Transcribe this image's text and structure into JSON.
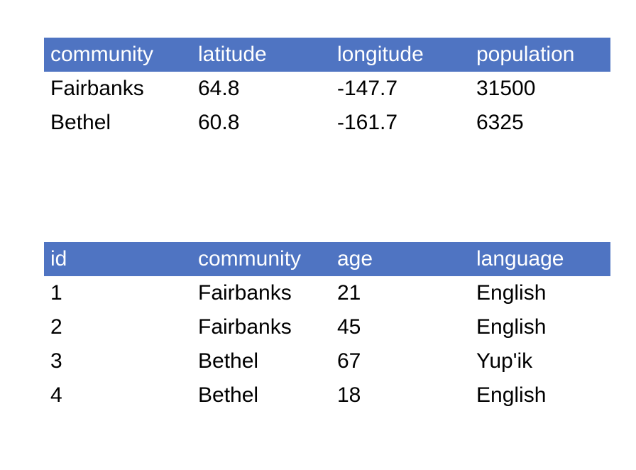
{
  "communities_table": {
    "headers": [
      "community",
      "latitude",
      "longitude",
      "population"
    ],
    "rows": [
      [
        "Fairbanks",
        "64.8",
        "-147.7",
        "31500"
      ],
      [
        "Bethel",
        "60.8",
        "-161.7",
        "6325"
      ]
    ]
  },
  "people_table": {
    "headers": [
      "id",
      "community",
      "age",
      "language"
    ],
    "rows": [
      [
        "1",
        "Fairbanks",
        "21",
        "English"
      ],
      [
        "2",
        "Fairbanks",
        "45",
        "English"
      ],
      [
        "3",
        "Bethel",
        "67",
        "Yup'ik"
      ],
      [
        "4",
        "Bethel",
        "18",
        "English"
      ]
    ]
  },
  "colors": {
    "header_background": "#4f74c2",
    "header_text": "#ffffff",
    "body_text": "#000000"
  }
}
